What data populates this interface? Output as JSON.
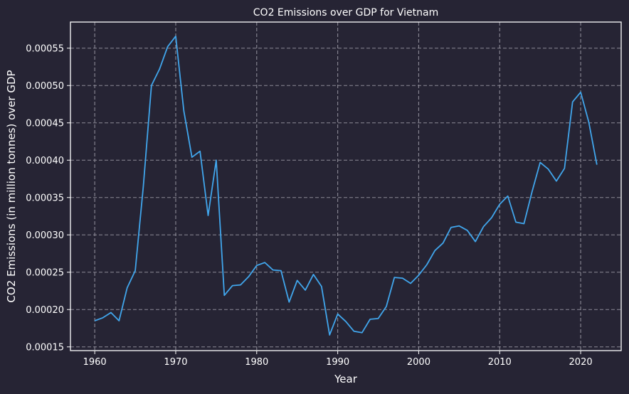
{
  "colors": {
    "background": "#262434",
    "axes": "#ffffff",
    "grid": "#8c8a96",
    "line": "#41a6ec",
    "text": "#ffffff"
  },
  "chart_data": {
    "type": "line",
    "title": "CO2 Emissions over GDP for Vietnam",
    "xlabel": "Year",
    "ylabel": "CO2 Emissions (in million tonnes) over GDP",
    "xlim": [
      1957,
      2025
    ],
    "ylim": [
      0.000145,
      0.000585
    ],
    "grid": true,
    "grid_style": "dashed",
    "xticks": [
      1960,
      1970,
      1980,
      1990,
      2000,
      2010,
      2020
    ],
    "xtick_labels": [
      "1960",
      "1970",
      "1980",
      "1990",
      "2000",
      "2010",
      "2020"
    ],
    "yticks": [
      0.00015,
      0.0002,
      0.00025,
      0.0003,
      0.00035,
      0.0004,
      0.00045,
      0.0005,
      0.00055
    ],
    "ytick_labels": [
      "0.00015",
      "0.00020",
      "0.00025",
      "0.00030",
      "0.00035",
      "0.00040",
      "0.00045",
      "0.00050",
      "0.00055"
    ],
    "series": [
      {
        "x": [
          1960,
          1961,
          1962,
          1963,
          1964,
          1965,
          1966,
          1967,
          1968,
          1969,
          1970,
          1971,
          1972,
          1973,
          1974,
          1975,
          1976,
          1977,
          1978,
          1979,
          1980,
          1981,
          1982,
          1983,
          1984,
          1985,
          1986,
          1987,
          1988,
          1989,
          1990,
          1991,
          1992,
          1993,
          1994,
          1995,
          1996,
          1997,
          1998,
          1999,
          2000,
          2001,
          2002,
          2003,
          2004,
          2005,
          2006,
          2007,
          2008,
          2009,
          2010,
          2011,
          2012,
          2013,
          2014,
          2015,
          2016,
          2017,
          2018,
          2019,
          2020,
          2021,
          2022
        ],
        "values": [
          0.000185,
          0.000189,
          0.000196,
          0.000185,
          0.000229,
          0.000252,
          0.000365,
          0.0005,
          0.000522,
          0.000552,
          0.000566,
          0.000466,
          0.000404,
          0.000412,
          0.000326,
          0.0004,
          0.000219,
          0.000232,
          0.000233,
          0.000244,
          0.000259,
          0.000263,
          0.000253,
          0.000252,
          0.00021,
          0.000239,
          0.000226,
          0.000247,
          0.000231,
          0.000166,
          0.000194,
          0.000184,
          0.000171,
          0.000169,
          0.000187,
          0.000188,
          0.000204,
          0.000243,
          0.000242,
          0.000235,
          0.000246,
          0.00026,
          0.000279,
          0.000289,
          0.00031,
          0.000312,
          0.000306,
          0.000291,
          0.000311,
          0.000323,
          0.000341,
          0.000352,
          0.000317,
          0.000315,
          0.000358,
          0.000397,
          0.000388,
          0.000372,
          0.000389,
          0.000478,
          0.000491,
          0.000451,
          0.000394
        ]
      }
    ]
  }
}
